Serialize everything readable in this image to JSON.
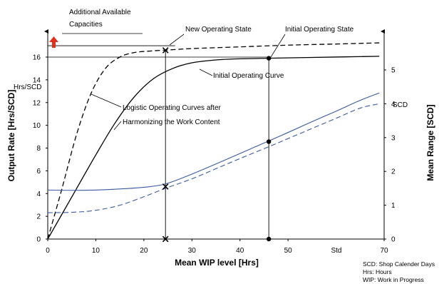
{
  "chart_data": {
    "type": "line",
    "xlabel": "Mean WIP level [Hrs]",
    "ylabel_left": "Output Rate [Hrs/SCD]",
    "ylabel_right": "Mean Range [SCD]",
    "x_unit": "Std",
    "y_left_unit": "Hrs/SCD",
    "y_right_unit": "SCD",
    "xlim": [
      0,
      70
    ],
    "ylim_left": [
      0,
      18
    ],
    "ylim_right": [
      0,
      5.75
    ],
    "x_ticks": [
      0,
      10,
      20,
      30,
      40,
      50,
      70
    ],
    "y_left_ticks": [
      0,
      2,
      4,
      6,
      8,
      10,
      12,
      14,
      16
    ],
    "y_right_ticks": [
      0,
      1,
      2,
      3,
      4,
      5
    ],
    "grid": false,
    "series": [
      {
        "name": "Initial Operating Curve",
        "axis": "left",
        "color": "#000000",
        "dash": "solid",
        "x": [
          0,
          5,
          10,
          14,
          18,
          22,
          26,
          30,
          35,
          40,
          46,
          55,
          62,
          69
        ],
        "y": [
          0,
          3.7,
          7.4,
          10.2,
          12.5,
          14.1,
          15.0,
          15.5,
          15.75,
          15.85,
          15.9,
          15.97,
          16.02,
          16.07
        ]
      },
      {
        "axis": "left",
        "color": "#000000",
        "dash": "dashed",
        "x": [
          0,
          3,
          6,
          9,
          12,
          15,
          18,
          22,
          26,
          30,
          40,
          50,
          60,
          69
        ],
        "y": [
          0,
          4.5,
          9.2,
          12.8,
          15.0,
          16.0,
          16.4,
          16.55,
          16.65,
          16.75,
          16.9,
          17.05,
          17.15,
          17.25
        ]
      },
      {
        "axis": "right",
        "color": "#3a5aa0",
        "dash": "solid",
        "x": [
          0,
          5,
          10,
          15,
          20,
          24.5,
          30,
          35,
          40,
          46,
          50,
          55,
          60,
          65,
          69
        ],
        "y": [
          1.45,
          1.44,
          1.45,
          1.48,
          1.53,
          1.63,
          1.92,
          2.22,
          2.53,
          2.9,
          3.15,
          3.47,
          3.78,
          4.1,
          4.32
        ]
      },
      {
        "axis": "right",
        "color": "#3a5aa0",
        "dash": "dashed",
        "x": [
          0,
          5,
          10,
          15,
          20,
          24.5,
          30,
          35,
          40,
          46,
          50,
          55,
          60,
          65,
          69
        ],
        "y": [
          0.78,
          0.79,
          0.85,
          1.0,
          1.25,
          1.5,
          1.78,
          2.08,
          2.38,
          2.73,
          2.97,
          3.27,
          3.57,
          3.87,
          4.0
        ]
      }
    ],
    "points": [
      {
        "label": "New Operating State",
        "x": 24.5,
        "y_left": 16.6,
        "marker": "x"
      },
      {
        "label": "Initial Operating State",
        "x": 46,
        "y_left": 15.9,
        "marker": "dot"
      },
      {
        "x": 24.5,
        "y_right": 1.55,
        "marker": "x"
      },
      {
        "x": 46,
        "y_right": 2.88,
        "marker": "dot"
      },
      {
        "x": 24.5,
        "y_left": 0,
        "marker": "x"
      },
      {
        "x": 46,
        "y_left": 0,
        "marker": "dot"
      }
    ],
    "reference_levels_left": [
      16,
      17
    ],
    "annotations": {
      "additional_capacities": "Additional Available Capacities",
      "new_operating_state": "New Operating State",
      "initial_operating_state": "Initial Operating State",
      "initial_operating_curve": "Initial Operating Curve",
      "logistic_curves_line1": "Logistic Operating Curves after",
      "logistic_curves_line2": "Harmonizing the Work Content"
    },
    "footnotes": [
      "SCD: Shop Calender Days",
      "Hrs: Hours",
      "WIP: Work in Progress"
    ],
    "colors": {
      "black_curves": "#000000",
      "blue_curves": "#3a5aa0",
      "arrow": "#e03020"
    }
  }
}
